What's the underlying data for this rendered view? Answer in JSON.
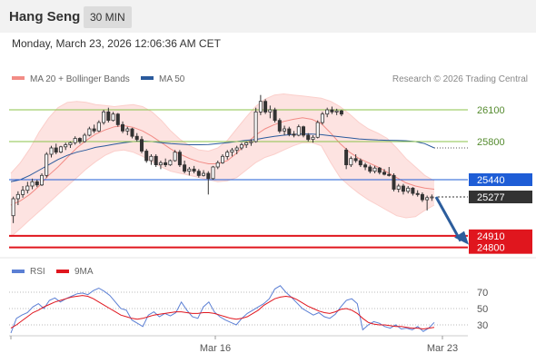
{
  "header": {
    "title": "Hang Seng",
    "timeframe": "30 MIN"
  },
  "datetime": "Monday, March 23, 2026 12:06:36 AM CET",
  "legend": [
    {
      "label": "MA 20 + Bollinger Bands",
      "color": "#f28c86"
    },
    {
      "label": "MA 50",
      "color": "#2a5a9c"
    }
  ],
  "credit": "Research © 2026 Trading Central",
  "chart_data": [
    {
      "type": "candlestick",
      "x_tick_labels": [
        "Mar 16",
        "Mar 23"
      ],
      "levels": [
        {
          "value": 26100,
          "label": "26100",
          "kind": "resistance",
          "color": "#8bc34a"
        },
        {
          "value": 25800,
          "label": "25800",
          "kind": "resistance",
          "color": "#8bc34a"
        },
        {
          "value": 25440,
          "label": "25440",
          "kind": "pivot",
          "color": "#1e5dd6"
        },
        {
          "value": 25277,
          "label": "25277",
          "kind": "last",
          "color": "#333333"
        },
        {
          "value": 24910,
          "label": "24910",
          "kind": "target",
          "color": "#e0161e"
        },
        {
          "value": 24800,
          "label": "24800",
          "kind": "target",
          "color": "#e0161e"
        }
      ],
      "ohlc": [
        [
          25100,
          25280,
          25030,
          25260
        ],
        [
          25260,
          25330,
          25200,
          25300
        ],
        [
          25300,
          25380,
          25270,
          25340
        ],
        [
          25340,
          25420,
          25310,
          25380
        ],
        [
          25380,
          25450,
          25350,
          25420
        ],
        [
          25420,
          25440,
          25370,
          25390
        ],
        [
          25390,
          25500,
          25380,
          25480
        ],
        [
          25480,
          25700,
          25460,
          25680
        ],
        [
          25680,
          25760,
          25650,
          25740
        ],
        [
          25740,
          25780,
          25680,
          25700
        ],
        [
          25700,
          25760,
          25690,
          25750
        ],
        [
          25750,
          25790,
          25720,
          25770
        ],
        [
          25770,
          25800,
          25740,
          25790
        ],
        [
          25790,
          25850,
          25770,
          25830
        ],
        [
          25830,
          25840,
          25780,
          25800
        ],
        [
          25800,
          25880,
          25790,
          25860
        ],
        [
          25860,
          25940,
          25850,
          25920
        ],
        [
          25920,
          25960,
          25880,
          25900
        ],
        [
          25900,
          26000,
          25890,
          25980
        ],
        [
          25980,
          26100,
          25960,
          26080
        ],
        [
          26080,
          26120,
          25980,
          26000
        ],
        [
          26000,
          26080,
          25990,
          26060
        ],
        [
          26060,
          26070,
          25940,
          25960
        ],
        [
          25960,
          25990,
          25880,
          25900
        ],
        [
          25900,
          25940,
          25860,
          25920
        ],
        [
          25920,
          25930,
          25830,
          25850
        ],
        [
          25850,
          25880,
          25800,
          25820
        ],
        [
          25820,
          25850,
          25690,
          25710
        ],
        [
          25710,
          25730,
          25600,
          25620
        ],
        [
          25620,
          25680,
          25580,
          25660
        ],
        [
          25660,
          25680,
          25560,
          25580
        ],
        [
          25580,
          25620,
          25540,
          25600
        ],
        [
          25600,
          25640,
          25560,
          25580
        ],
        [
          25580,
          25630,
          25570,
          25620
        ],
        [
          25620,
          25720,
          25610,
          25700
        ],
        [
          25700,
          25720,
          25560,
          25580
        ],
        [
          25580,
          25620,
          25500,
          25520
        ],
        [
          25520,
          25560,
          25480,
          25540
        ],
        [
          25540,
          25570,
          25500,
          25520
        ],
        [
          25520,
          25540,
          25460,
          25480
        ],
        [
          25480,
          25530,
          25470,
          25500
        ],
        [
          25500,
          25520,
          25300,
          25450
        ],
        [
          25450,
          25570,
          25440,
          25560
        ],
        [
          25560,
          25620,
          25540,
          25600
        ],
        [
          25600,
          25680,
          25590,
          25660
        ],
        [
          25660,
          25720,
          25630,
          25700
        ],
        [
          25700,
          25740,
          25660,
          25720
        ],
        [
          25720,
          25760,
          25680,
          25740
        ],
        [
          25740,
          25790,
          25720,
          25770
        ],
        [
          25770,
          25800,
          25740,
          25790
        ],
        [
          25790,
          25820,
          25760,
          25800
        ],
        [
          25800,
          26120,
          25790,
          26080
        ],
        [
          26080,
          26240,
          26050,
          26180
        ],
        [
          26180,
          26200,
          26060,
          26080
        ],
        [
          26080,
          26140,
          26020,
          26100
        ],
        [
          26100,
          26120,
          25980,
          26000
        ],
        [
          26000,
          26020,
          25880,
          25900
        ],
        [
          25900,
          25950,
          25860,
          25920
        ],
        [
          25920,
          25940,
          25850,
          25870
        ],
        [
          25870,
          25900,
          25840,
          25860
        ],
        [
          25860,
          25960,
          25850,
          25940
        ],
        [
          25940,
          25950,
          25840,
          25860
        ],
        [
          25860,
          25880,
          25800,
          25820
        ],
        [
          25820,
          25860,
          25790,
          25840
        ],
        [
          25840,
          26000,
          25830,
          25980
        ],
        [
          25980,
          26080,
          25960,
          26060
        ],
        [
          26060,
          26120,
          26030,
          26100
        ],
        [
          26100,
          26130,
          26060,
          26080
        ],
        [
          26080,
          26110,
          26050,
          26090
        ],
        [
          26090,
          26100,
          26040,
          26060
        ],
        [
          25720,
          25740,
          25540,
          25580
        ],
        [
          25580,
          25660,
          25560,
          25640
        ],
        [
          25640,
          25680,
          25600,
          25620
        ],
        [
          25620,
          25640,
          25560,
          25580
        ],
        [
          25580,
          25600,
          25530,
          25560
        ],
        [
          25560,
          25580,
          25500,
          25520
        ],
        [
          25520,
          25570,
          25500,
          25550
        ],
        [
          25550,
          25560,
          25490,
          25510
        ],
        [
          25510,
          25540,
          25480,
          25490
        ],
        [
          25490,
          25560,
          25470,
          25480
        ],
        [
          25480,
          25500,
          25330,
          25350
        ],
        [
          25350,
          25400,
          25320,
          25380
        ],
        [
          25380,
          25400,
          25300,
          25330
        ],
        [
          25330,
          25380,
          25310,
          25360
        ],
        [
          25360,
          25370,
          25290,
          25310
        ],
        [
          25310,
          25340,
          25280,
          25300
        ],
        [
          25300,
          25320,
          25230,
          25250
        ],
        [
          25250,
          25290,
          25150,
          25270
        ],
        [
          25270,
          25300,
          25240,
          25277
        ]
      ],
      "ma20": [
        25200,
        25240,
        25300,
        25380,
        25480,
        25560,
        25650,
        25740,
        25810,
        25870,
        25910,
        25940,
        25950,
        25935,
        25900,
        25850,
        25790,
        25730,
        25680,
        25640,
        25610,
        25590,
        25590,
        25620,
        25690,
        25780,
        25860,
        25920,
        25960,
        25990,
        26010,
        26025,
        26010,
        25970,
        25880,
        25780,
        25700,
        25640,
        25600,
        25560,
        25510,
        25460,
        25410,
        25380,
        25360,
        25350
      ],
      "ma50": [
        25420,
        25440,
        25480,
        25530,
        25580,
        25630,
        25670,
        25700,
        25720,
        25745,
        25760,
        25775,
        25790,
        25800,
        25805,
        25800,
        25790,
        25780,
        25775,
        25770,
        25770,
        25772,
        25780,
        25790,
        25800,
        25812,
        25820,
        25835,
        25850,
        25860,
        25868,
        25872,
        25870,
        25865,
        25855,
        25845,
        25835,
        25825,
        25820,
        25815,
        25812,
        25810,
        25808,
        25800,
        25780,
        25740
      ],
      "bb_upper": [
        25500,
        25600,
        25730,
        25890,
        26020,
        26120,
        26170,
        26180,
        26170,
        26150,
        26140,
        26130,
        26140,
        26150,
        26130,
        26080,
        26000,
        25900,
        25820,
        25760,
        25720,
        25710,
        25740,
        25810,
        25920,
        26030,
        26130,
        26200,
        26240,
        26250,
        26240,
        26230,
        26220,
        26210,
        26180,
        26130,
        26060,
        25980,
        25920,
        25880,
        25830,
        25740,
        25640,
        25560,
        25480,
        25430
      ],
      "bb_lower": [
        24900,
        24980,
        25060,
        25140,
        25220,
        25300,
        25380,
        25460,
        25540,
        25610,
        25670,
        25710,
        25720,
        25700,
        25660,
        25610,
        25560,
        25520,
        25500,
        25480,
        25460,
        25440,
        25420,
        25430,
        25460,
        25530,
        25600,
        25650,
        25680,
        25720,
        25760,
        25790,
        25790,
        25760,
        25600,
        25460,
        25380,
        25310,
        25250,
        25200,
        25150,
        25100,
        25080,
        25090,
        25150,
        25200
      ],
      "projection": {
        "from": 25277,
        "to": 24860
      }
    },
    {
      "type": "line",
      "series": [
        {
          "name": "RSI",
          "color": "#5b7fd4",
          "values": [
            20,
            38,
            42,
            45,
            52,
            56,
            50,
            60,
            63,
            58,
            62,
            65,
            68,
            69,
            67,
            72,
            75,
            71,
            66,
            58,
            50,
            48,
            36,
            32,
            28,
            42,
            46,
            40,
            44,
            41,
            45,
            58,
            48,
            40,
            38,
            52,
            58,
            46,
            40,
            36,
            33,
            30,
            38,
            44,
            48,
            52,
            56,
            62,
            74,
            78,
            70,
            64,
            57,
            50,
            46,
            42,
            45,
            40,
            38,
            43,
            52,
            60,
            62,
            56,
            24,
            30,
            34,
            32,
            28,
            26,
            30,
            25,
            26,
            24,
            28,
            22,
            26,
            33
          ]
        },
        {
          "name": "9MA",
          "color": "#e0161e",
          "values": [
            26,
            30,
            35,
            40,
            45,
            48,
            52,
            55,
            58,
            60,
            62,
            64,
            65,
            66,
            65,
            62,
            58,
            54,
            50,
            46,
            42,
            40,
            38,
            37,
            38,
            40,
            42,
            43,
            44,
            45,
            46,
            46,
            45,
            44,
            44,
            45,
            45,
            44,
            42,
            40,
            38,
            37,
            38,
            40,
            44,
            48,
            54,
            58,
            62,
            64,
            65,
            64,
            61,
            57,
            53,
            50,
            47,
            45,
            44,
            46,
            49,
            50,
            48,
            44,
            38,
            33,
            31,
            30,
            30,
            29,
            28,
            28,
            27,
            26,
            26,
            25,
            26,
            27
          ]
        }
      ],
      "y_tick_labels": [
        "70",
        "50",
        "30"
      ],
      "y_ticks": [
        70,
        50,
        30
      ]
    }
  ]
}
